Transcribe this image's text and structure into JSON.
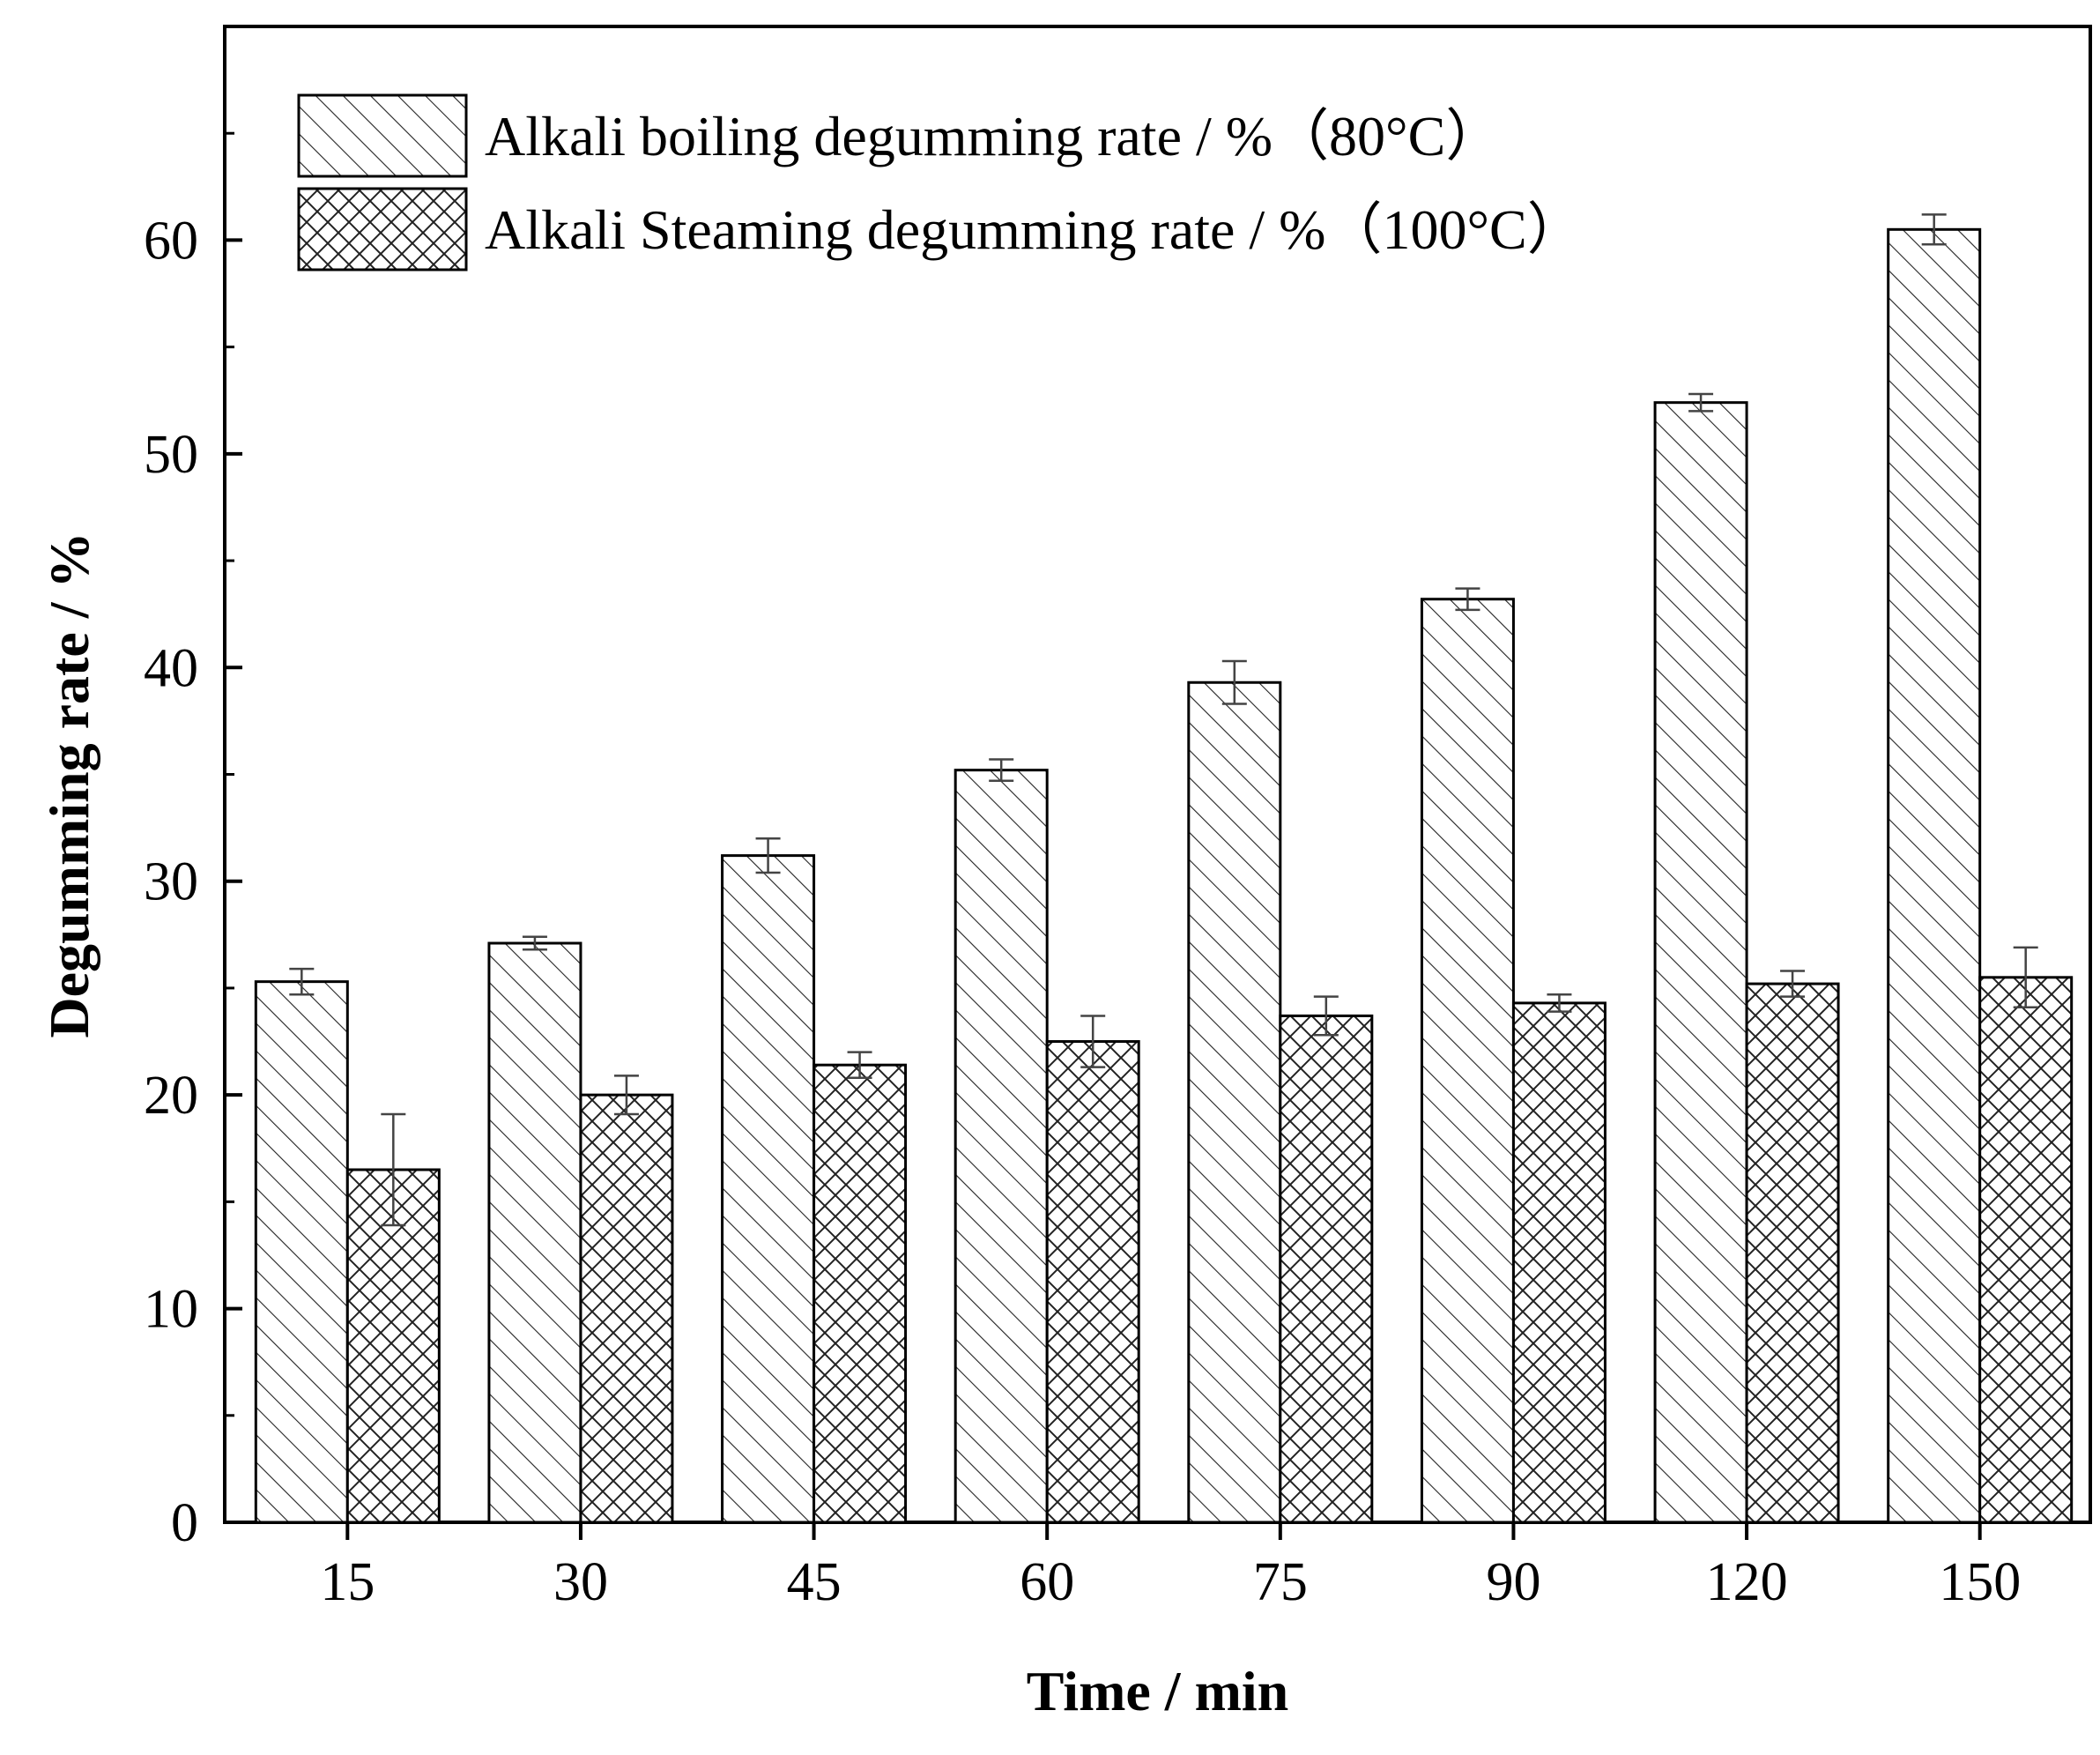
{
  "chart_data": {
    "type": "bar",
    "title": "",
    "xlabel": "Time / min",
    "ylabel": "Degumming rate / %",
    "categories": [
      "15",
      "30",
      "45",
      "60",
      "75",
      "90",
      "120",
      "150"
    ],
    "ylim": [
      0,
      70
    ],
    "yticks": [
      "0",
      "10",
      "20",
      "30",
      "40",
      "50",
      "60"
    ],
    "grid": false,
    "legend_position": "top-left",
    "series": [
      {
        "name": "Alkali boiling degumming rate / %（80°C）",
        "pattern": "diagonal-hatch",
        "values": [
          25.3,
          27.1,
          31.2,
          35.2,
          39.3,
          43.2,
          52.4,
          60.5
        ],
        "errors": [
          0.6,
          0.3,
          0.8,
          0.5,
          1.0,
          0.5,
          0.4,
          0.7
        ]
      },
      {
        "name": "Alkali Steaming degumming rate / %（100°C）",
        "pattern": "cross-hatch",
        "values": [
          16.5,
          20.0,
          21.4,
          22.5,
          23.7,
          24.3,
          25.2,
          25.5
        ],
        "errors": [
          2.6,
          0.9,
          0.6,
          1.2,
          0.9,
          0.4,
          0.6,
          1.4
        ]
      }
    ]
  },
  "colors": {
    "axis": "#000000",
    "bar_fill": "#ffffff",
    "hatch": "#222222",
    "error_bar": "#444444"
  }
}
